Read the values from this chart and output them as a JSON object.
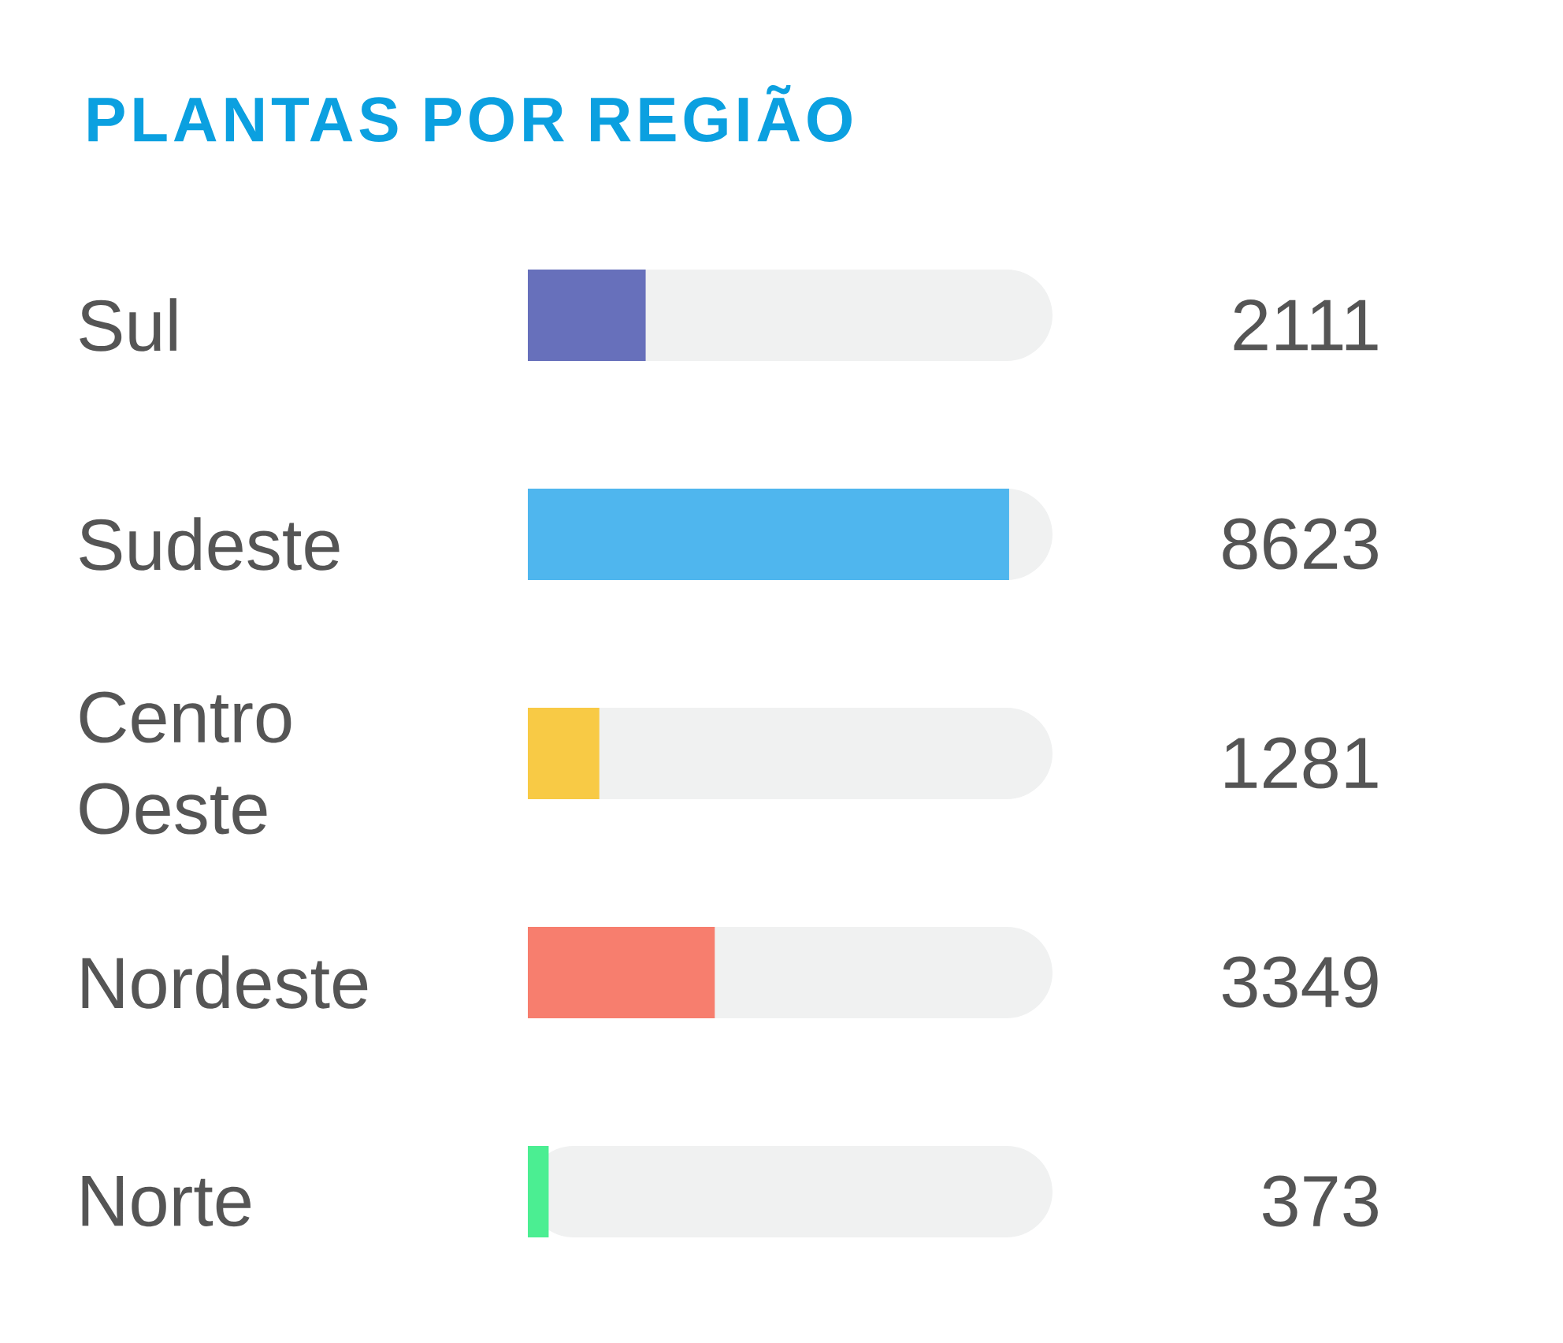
{
  "chart_data": {
    "type": "bar",
    "orientation": "horizontal",
    "title": "PLANTAS POR REGIÃO",
    "categories": [
      "Sul",
      "Sudeste",
      "Centro Oeste",
      "Nordeste",
      "Norte"
    ],
    "values": [
      2111,
      8623,
      1281,
      3349,
      373
    ],
    "colors": [
      "#6770bb",
      "#4fb6ee",
      "#f8ca45",
      "#f77e6e",
      "#4bee92"
    ],
    "xlim": [
      0,
      9400
    ],
    "tick_labels": "y",
    "data_labels": true
  }
}
